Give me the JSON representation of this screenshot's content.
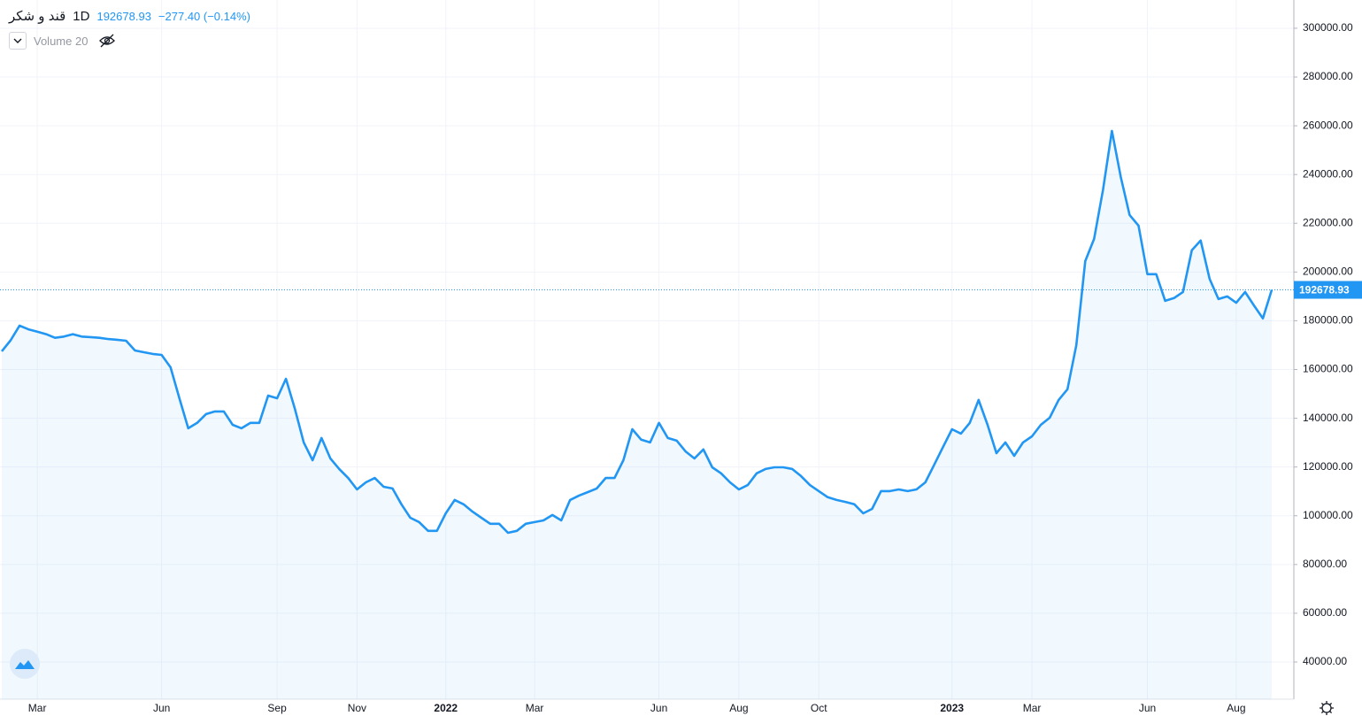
{
  "chart_data": {
    "type": "line",
    "title": "قند و شکر",
    "interval": "1D",
    "last_price": "192678.93",
    "change": "−277.40 (−0.14%)",
    "indicator": "Volume 20",
    "color": "#2196f3",
    "grid": true,
    "ylim": [
      24750,
      311600
    ],
    "yticks": [
      {
        "value": 40000,
        "label": "40000.00"
      },
      {
        "value": 60000,
        "label": "60000.00"
      },
      {
        "value": 80000,
        "label": "80000.00"
      },
      {
        "value": 100000,
        "label": "100000.00"
      },
      {
        "value": 120000,
        "label": "120000.00"
      },
      {
        "value": 140000,
        "label": "140000.00"
      },
      {
        "value": 160000,
        "label": "160000.00"
      },
      {
        "value": 180000,
        "label": "180000.00"
      },
      {
        "value": 200000,
        "label": "200000.00"
      },
      {
        "value": 220000,
        "label": "220000.00"
      },
      {
        "value": 240000,
        "label": "240000.00"
      },
      {
        "value": 260000,
        "label": "260000.00"
      },
      {
        "value": 280000,
        "label": "280000.00"
      },
      {
        "value": 300000,
        "label": "300000.00"
      }
    ],
    "categories": [
      null,
      null,
      null,
      null,
      "Mar",
      null,
      null,
      null,
      null,
      null,
      null,
      null,
      null,
      null,
      null,
      null,
      null,
      null,
      "Jun",
      null,
      null,
      null,
      null,
      null,
      null,
      null,
      null,
      null,
      null,
      null,
      null,
      "Sep",
      null,
      null,
      null,
      null,
      null,
      null,
      null,
      null,
      "Nov",
      null,
      null,
      null,
      null,
      null,
      null,
      null,
      null,
      null,
      "2022",
      null,
      null,
      null,
      null,
      null,
      null,
      null,
      null,
      null,
      "Mar",
      null,
      null,
      null,
      null,
      null,
      null,
      null,
      null,
      null,
      null,
      null,
      null,
      null,
      "Jun",
      null,
      null,
      null,
      null,
      null,
      null,
      null,
      null,
      "Aug",
      null,
      null,
      null,
      null,
      null,
      null,
      null,
      null,
      "Oct",
      null,
      null,
      null,
      null,
      null,
      null,
      null,
      null,
      null,
      null,
      null,
      null,
      null,
      null,
      "2023",
      null,
      null,
      null,
      null,
      null,
      null,
      null,
      null,
      "Mar",
      null,
      null,
      null,
      null,
      null,
      null,
      null,
      null,
      null,
      null,
      null,
      null,
      "Jun",
      null,
      null,
      null,
      null,
      null,
      null,
      null,
      null,
      null,
      "Aug",
      null,
      null,
      null,
      null
    ],
    "values": [
      167500,
      172000,
      178000,
      176500,
      175500,
      174500,
      173000,
      173500,
      174500,
      173500,
      173300,
      173000,
      172500,
      172200,
      171800,
      167800,
      167100,
      166400,
      166000,
      160900,
      148200,
      135900,
      138100,
      141700,
      142800,
      142800,
      137300,
      135900,
      138100,
      138100,
      149300,
      148200,
      156200,
      143900,
      130100,
      122800,
      131900,
      123500,
      119200,
      115500,
      110800,
      113700,
      115500,
      111900,
      111200,
      104700,
      99200,
      97400,
      93800,
      93800,
      101000,
      106500,
      104700,
      101700,
      99200,
      96700,
      96700,
      93000,
      93800,
      96700,
      97400,
      98100,
      100300,
      98100,
      106500,
      108300,
      109700,
      111200,
      115500,
      115500,
      122800,
      135500,
      131200,
      130100,
      138100,
      131900,
      130800,
      126400,
      123500,
      127200,
      119900,
      117400,
      113700,
      110800,
      112600,
      117400,
      119200,
      119900,
      119900,
      119200,
      116300,
      112600,
      110100,
      107600,
      106500,
      105700,
      104700,
      101000,
      102800,
      110100,
      110100,
      110800,
      110100,
      110800,
      113700,
      121000,
      128300,
      135500,
      133700,
      138100,
      147500,
      137300,
      125700,
      130100,
      124600,
      130100,
      132600,
      137300,
      140200,
      147500,
      151900,
      170000,
      204500,
      213600,
      233600,
      257900,
      239000,
      223400,
      219000,
      199100,
      199100,
      188200,
      189300,
      191800,
      208900,
      212900,
      197200,
      188900,
      190000,
      187400,
      191800,
      186300,
      181000,
      192678.93
    ]
  }
}
